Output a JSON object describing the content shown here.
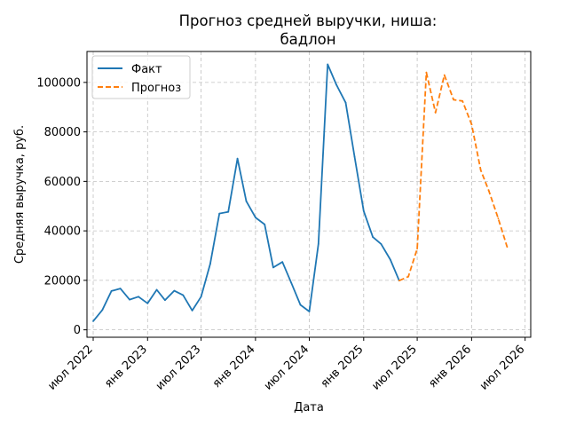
{
  "chart_data": {
    "type": "line",
    "title_line1": "Прогноз средней выручки, ниша:",
    "title_line2": "бадлон",
    "xlabel": "Дата",
    "ylabel": "Средняя выручка, руб.",
    "ylim": [
      -3000,
      112500
    ],
    "xlim": [
      "2022-06-10",
      "2026-07-20"
    ],
    "grid": true,
    "legend_position": "top-left",
    "y_ticks": [
      0,
      20000,
      40000,
      60000,
      80000,
      100000
    ],
    "y_tick_labels": [
      "0",
      "20000",
      "40000",
      "60000",
      "80000",
      "100000"
    ],
    "x_ticks": [
      "2022-07-01",
      "2023-01-01",
      "2023-07-01",
      "2024-01-01",
      "2024-07-01",
      "2025-01-01",
      "2025-07-01",
      "2026-01-01",
      "2026-07-01"
    ],
    "x_tick_labels": [
      "июл 2022",
      "янв 2023",
      "июл 2023",
      "янв 2024",
      "июл 2024",
      "янв 2025",
      "июл 2025",
      "янв 2026",
      "июл 2026"
    ],
    "series": [
      {
        "name": "Факт",
        "color": "#1f77b4",
        "style": "solid",
        "points": [
          [
            "2022-07-01",
            3500
          ],
          [
            "2022-08-01",
            8000
          ],
          [
            "2022-09-01",
            15700
          ],
          [
            "2022-10-01",
            16700
          ],
          [
            "2022-11-01",
            12200
          ],
          [
            "2022-12-01",
            13400
          ],
          [
            "2023-01-01",
            10700
          ],
          [
            "2023-02-01",
            16200
          ],
          [
            "2023-03-01",
            12000
          ],
          [
            "2023-04-01",
            15800
          ],
          [
            "2023-05-01",
            14000
          ],
          [
            "2023-06-01",
            7800
          ],
          [
            "2023-07-01",
            13400
          ],
          [
            "2023-08-01",
            26700
          ],
          [
            "2023-09-01",
            47000
          ],
          [
            "2023-10-01",
            47700
          ],
          [
            "2023-11-01",
            69200
          ],
          [
            "2023-12-01",
            52000
          ],
          [
            "2024-01-01",
            45400
          ],
          [
            "2024-02-01",
            42600
          ],
          [
            "2024-03-01",
            25200
          ],
          [
            "2024-04-01",
            27400
          ],
          [
            "2024-05-01",
            19000
          ],
          [
            "2024-06-01",
            10100
          ],
          [
            "2024-07-01",
            7400
          ],
          [
            "2024-08-01",
            34700
          ],
          [
            "2024-09-01",
            107300
          ],
          [
            "2024-10-01",
            99000
          ],
          [
            "2024-11-01",
            91800
          ],
          [
            "2024-12-01",
            70000
          ],
          [
            "2025-01-01",
            48000
          ],
          [
            "2025-02-01",
            37500
          ],
          [
            "2025-03-01",
            34700
          ],
          [
            "2025-04-01",
            28400
          ],
          [
            "2025-05-01",
            19900
          ]
        ]
      },
      {
        "name": "Прогноз",
        "color": "#ff7f0e",
        "style": "dashed",
        "points": [
          [
            "2025-05-01",
            19900
          ],
          [
            "2025-06-01",
            21500
          ],
          [
            "2025-07-01",
            32800
          ],
          [
            "2025-08-01",
            104000
          ],
          [
            "2025-09-01",
            87800
          ],
          [
            "2025-10-01",
            103000
          ],
          [
            "2025-11-01",
            93000
          ],
          [
            "2025-12-01",
            92500
          ],
          [
            "2026-01-01",
            83000
          ],
          [
            "2026-02-01",
            64500
          ],
          [
            "2026-03-01",
            56000
          ],
          [
            "2026-04-01",
            45000
          ],
          [
            "2026-05-01",
            33500
          ]
        ]
      }
    ]
  }
}
